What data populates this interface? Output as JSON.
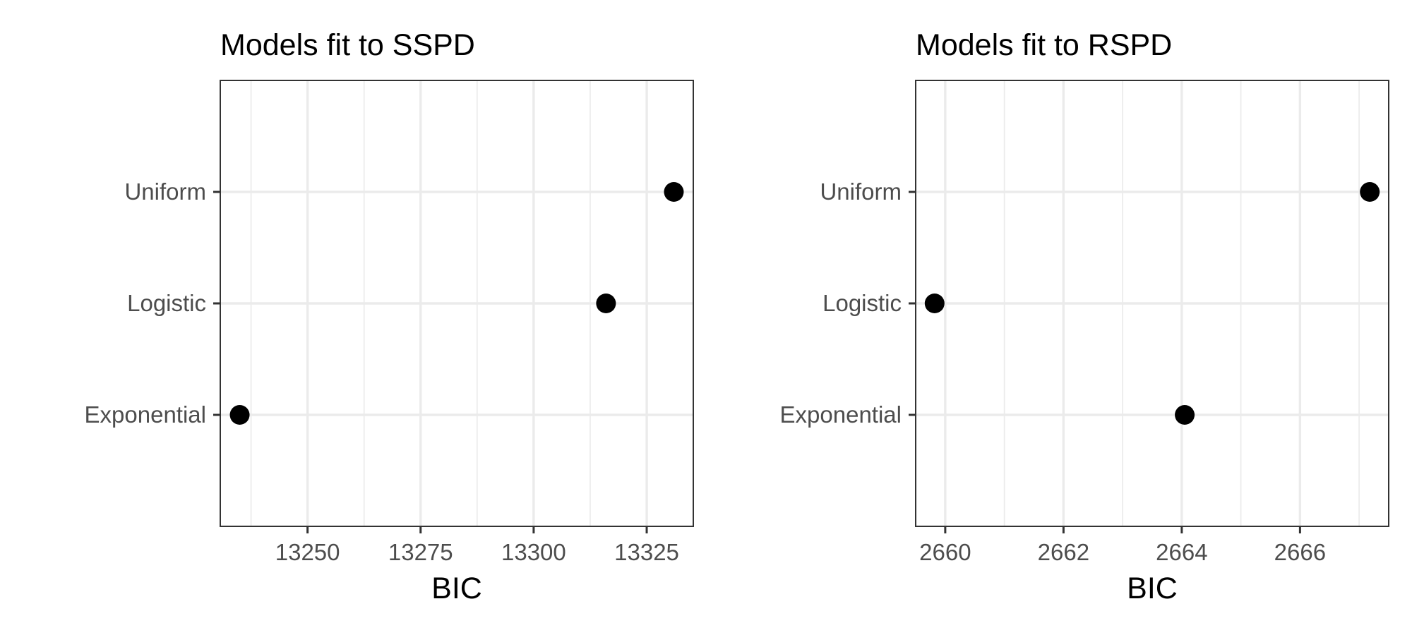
{
  "chart_data": [
    {
      "type": "scatter",
      "title": "Models fit to SSPD",
      "xlabel": "BIC",
      "ylabel": "",
      "categories": [
        "Exponential",
        "Logistic",
        "Uniform"
      ],
      "values": [
        13235,
        13316,
        13331
      ],
      "xlim": [
        13230.7,
        13335.3
      ],
      "xticks": [
        13250,
        13275,
        13300,
        13325
      ],
      "xtick_labels": [
        "13250",
        "13275",
        "13300",
        "13325"
      ],
      "grid": true
    },
    {
      "type": "scatter",
      "title": "Models fit to RSPD",
      "xlabel": "BIC",
      "ylabel": "",
      "categories": [
        "Exponential",
        "Logistic",
        "Uniform"
      ],
      "values": [
        2664.05,
        2659.82,
        2667.18
      ],
      "xlim": [
        2659.5,
        2667.5
      ],
      "xticks": [
        2660,
        2662,
        2664,
        2666
      ],
      "xtick_labels": [
        "2660",
        "2662",
        "2664",
        "2666"
      ],
      "grid": true
    }
  ]
}
